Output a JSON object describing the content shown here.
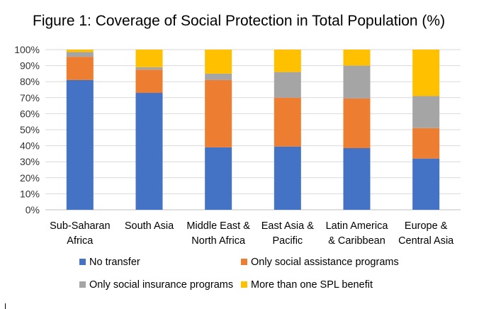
{
  "chart_data": {
    "type": "bar",
    "stacked": true,
    "title": "Figure 1: Coverage of Social Protection in Total Population (%)",
    "xlabel": "",
    "ylabel": "",
    "ylim": [
      0,
      100
    ],
    "yticks": [
      "0%",
      "10%",
      "20%",
      "30%",
      "40%",
      "50%",
      "60%",
      "70%",
      "80%",
      "90%",
      "100%"
    ],
    "grid": true,
    "legend_position": "bottom",
    "categories": [
      [
        "Sub-Saharan",
        "Africa"
      ],
      [
        "South Asia"
      ],
      [
        "Middle East &",
        "North Africa"
      ],
      [
        "East Asia &",
        "Pacific"
      ],
      [
        "Latin America",
        "& Caribbean"
      ],
      [
        "Europe &",
        "Central Asia"
      ]
    ],
    "series": [
      {
        "name": "No transfer",
        "color": "#4472C4",
        "values": [
          81,
          73,
          39,
          39.5,
          38.5,
          32
        ]
      },
      {
        "name": "Only social assistance programs",
        "color": "#ED7D31",
        "values": [
          14.5,
          14.5,
          42,
          30.5,
          31,
          19
        ]
      },
      {
        "name": "Only social insurance programs",
        "color": "#A5A5A5",
        "values": [
          3,
          1.5,
          4,
          16,
          20.5,
          20
        ]
      },
      {
        "name": "More than one SPL benefit",
        "color": "#FFC000",
        "values": [
          1.5,
          11,
          15,
          14,
          10,
          29
        ]
      }
    ]
  }
}
